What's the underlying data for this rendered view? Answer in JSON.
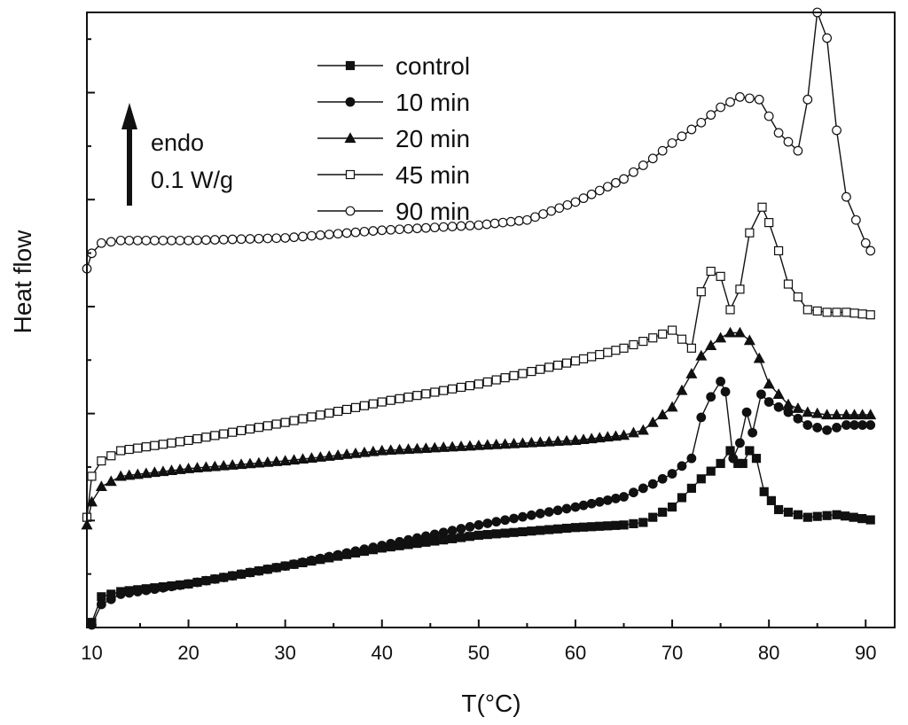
{
  "chart_data": {
    "type": "line",
    "title": "",
    "xlabel": "T(°C)",
    "ylabel": "Heat flow",
    "xlim": [
      9.5,
      93
    ],
    "ylim": [
      0,
      12
    ],
    "x_ticks": [
      10,
      20,
      30,
      40,
      50,
      60,
      70,
      80,
      90
    ],
    "y_axis_tick_labels": false,
    "y_major_tick_count": 6,
    "grid": false,
    "legend_position": "top-center",
    "annotation": {
      "arrow_direction": "up",
      "lines": [
        "endo",
        "0.1 W/g"
      ]
    },
    "series": [
      {
        "name": "control",
        "marker": "filled-square",
        "points": [
          [
            10,
            0.1
          ],
          [
            11,
            0.6
          ],
          [
            13,
            0.7
          ],
          [
            20,
            0.85
          ],
          [
            30,
            1.2
          ],
          [
            40,
            1.55
          ],
          [
            50,
            1.8
          ],
          [
            60,
            1.95
          ],
          [
            65,
            2.0
          ],
          [
            67,
            2.05
          ],
          [
            70,
            2.35
          ],
          [
            73,
            2.9
          ],
          [
            75,
            3.2
          ],
          [
            76,
            3.45
          ],
          [
            76.8,
            3.2
          ],
          [
            77.3,
            3.2
          ],
          [
            78,
            3.45
          ],
          [
            78.7,
            3.3
          ],
          [
            79.5,
            2.65
          ],
          [
            81,
            2.3
          ],
          [
            84,
            2.15
          ],
          [
            87,
            2.2
          ],
          [
            90.5,
            2.1
          ]
        ]
      },
      {
        "name": "10 min",
        "marker": "filled-circle",
        "points": [
          [
            10,
            0.05
          ],
          [
            11,
            0.45
          ],
          [
            13,
            0.65
          ],
          [
            20,
            0.85
          ],
          [
            30,
            1.2
          ],
          [
            40,
            1.6
          ],
          [
            50,
            2.0
          ],
          [
            60,
            2.35
          ],
          [
            65,
            2.55
          ],
          [
            68,
            2.8
          ],
          [
            70,
            3.0
          ],
          [
            72,
            3.3
          ],
          [
            73,
            4.1
          ],
          [
            74,
            4.5
          ],
          [
            75,
            4.8
          ],
          [
            75.5,
            4.6
          ],
          [
            76.3,
            3.3
          ],
          [
            77,
            3.6
          ],
          [
            77.7,
            4.2
          ],
          [
            78.3,
            3.8
          ],
          [
            79.2,
            4.55
          ],
          [
            80,
            4.4
          ],
          [
            82,
            4.2
          ],
          [
            84,
            3.95
          ],
          [
            86,
            3.85
          ],
          [
            88,
            3.95
          ],
          [
            90.5,
            3.95
          ]
        ]
      },
      {
        "name": "20 min",
        "marker": "filled-triangle",
        "points": [
          [
            9.5,
            2.0
          ],
          [
            10,
            2.45
          ],
          [
            11,
            2.75
          ],
          [
            13,
            2.95
          ],
          [
            20,
            3.1
          ],
          [
            30,
            3.25
          ],
          [
            40,
            3.45
          ],
          [
            50,
            3.55
          ],
          [
            60,
            3.65
          ],
          [
            65,
            3.75
          ],
          [
            67,
            3.85
          ],
          [
            70,
            4.3
          ],
          [
            72,
            4.95
          ],
          [
            73,
            5.3
          ],
          [
            74,
            5.5
          ],
          [
            75,
            5.65
          ],
          [
            76,
            5.75
          ],
          [
            77,
            5.75
          ],
          [
            78,
            5.6
          ],
          [
            79,
            5.25
          ],
          [
            80,
            4.75
          ],
          [
            82,
            4.35
          ],
          [
            84,
            4.2
          ],
          [
            86,
            4.15
          ],
          [
            88,
            4.15
          ],
          [
            90.5,
            4.15
          ]
        ]
      },
      {
        "name": "45 min",
        "marker": "open-square",
        "points": [
          [
            9.5,
            2.15
          ],
          [
            10,
            2.95
          ],
          [
            11,
            3.25
          ],
          [
            13,
            3.45
          ],
          [
            20,
            3.65
          ],
          [
            30,
            4.0
          ],
          [
            40,
            4.4
          ],
          [
            50,
            4.75
          ],
          [
            60,
            5.2
          ],
          [
            65,
            5.45
          ],
          [
            68,
            5.65
          ],
          [
            70,
            5.8
          ],
          [
            72,
            5.45
          ],
          [
            73,
            6.55
          ],
          [
            74,
            6.95
          ],
          [
            75,
            6.85
          ],
          [
            76,
            6.2
          ],
          [
            77,
            6.6
          ],
          [
            78,
            7.7
          ],
          [
            79.3,
            8.2
          ],
          [
            80,
            7.9
          ],
          [
            81,
            7.35
          ],
          [
            82,
            6.7
          ],
          [
            84,
            6.2
          ],
          [
            86,
            6.15
          ],
          [
            88,
            6.15
          ],
          [
            90.5,
            6.1
          ]
        ]
      },
      {
        "name": "90 min",
        "marker": "open-circle",
        "points": [
          [
            9.5,
            7.0
          ],
          [
            10,
            7.3
          ],
          [
            11,
            7.5
          ],
          [
            13,
            7.55
          ],
          [
            20,
            7.55
          ],
          [
            30,
            7.6
          ],
          [
            40,
            7.75
          ],
          [
            50,
            7.85
          ],
          [
            55,
            7.95
          ],
          [
            60,
            8.3
          ],
          [
            65,
            8.75
          ],
          [
            68,
            9.15
          ],
          [
            70,
            9.45
          ],
          [
            73,
            9.85
          ],
          [
            75,
            10.15
          ],
          [
            77,
            10.35
          ],
          [
            79,
            10.3
          ],
          [
            81,
            9.65
          ],
          [
            83,
            9.3
          ],
          [
            84,
            10.3
          ],
          [
            85,
            12.0
          ],
          [
            86,
            11.5
          ],
          [
            87,
            9.7
          ],
          [
            88,
            8.4
          ],
          [
            90,
            7.5
          ],
          [
            90.5,
            7.35
          ]
        ]
      }
    ]
  }
}
